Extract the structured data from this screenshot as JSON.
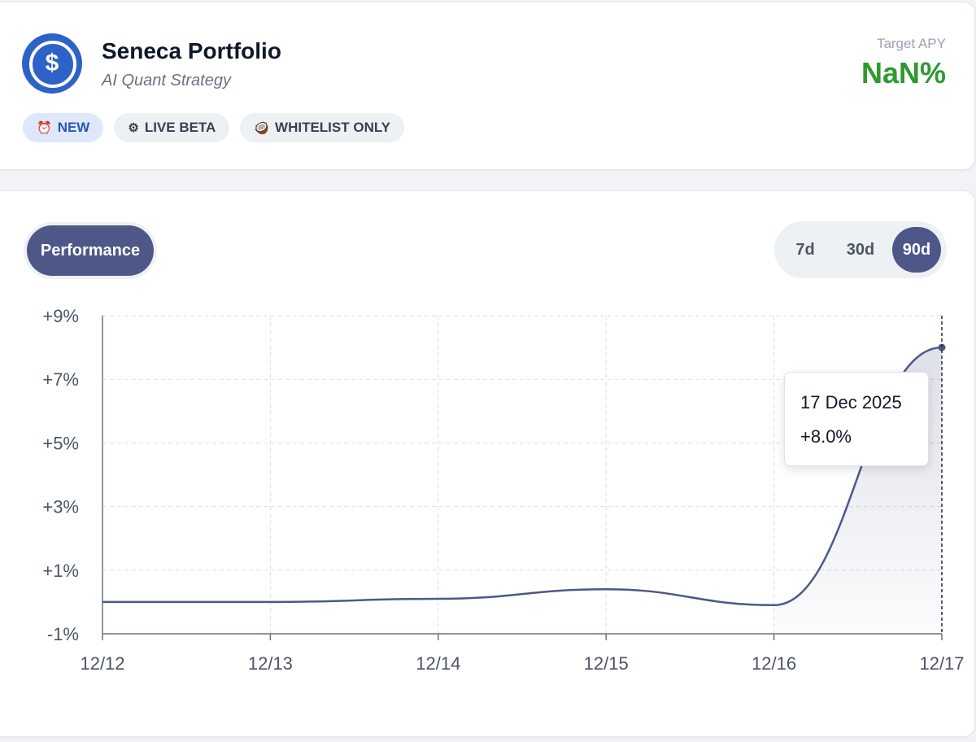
{
  "header": {
    "title": "Seneca Portfolio",
    "subtitle": "AI Quant Strategy",
    "logo_icon": "usd-coin-icon",
    "logo_glyph": "$",
    "target_apy_label": "Target APY",
    "target_apy_value": "NaN%",
    "badges": [
      {
        "label": "NEW",
        "icon": "alarm-clock-icon",
        "glyph": "⏰"
      },
      {
        "label": "LIVE BETA",
        "icon": "gear-icon",
        "glyph": "⚙"
      },
      {
        "label": "WHITELIST ONLY",
        "icon": "coconut-icon",
        "glyph": "🥥"
      }
    ]
  },
  "chart_section": {
    "tab_label": "Performance",
    "ranges": [
      "7d",
      "30d",
      "90d"
    ],
    "active_range": "90d"
  },
  "tooltip": {
    "date": "17 Dec 2025",
    "value": "+8.0%"
  },
  "colors": {
    "accent": "#4d5889",
    "positive": "#2e9a2e",
    "brand_blue": "#2d63c8"
  },
  "chart_data": {
    "type": "line",
    "title": "",
    "xlabel": "",
    "ylabel": "",
    "categories": [
      "12/12",
      "12/13",
      "12/14",
      "12/15",
      "12/16",
      "12/17"
    ],
    "series": [
      {
        "name": "Performance",
        "x": [
          "12/12",
          "12/13",
          "12/14",
          "12/15",
          "12/16",
          "12/17"
        ],
        "values": [
          0.0,
          0.0,
          0.1,
          0.4,
          -0.1,
          8.0
        ]
      }
    ],
    "y_ticks": [
      "+9%",
      "+7%",
      "+5%",
      "+3%",
      "+1%",
      "-1%"
    ],
    "y_tick_values": [
      9,
      7,
      5,
      3,
      1,
      -1
    ],
    "ylim": [
      -1,
      9
    ],
    "grid": true,
    "highlighted_point": {
      "x": "12/17",
      "y": 8.0
    }
  }
}
